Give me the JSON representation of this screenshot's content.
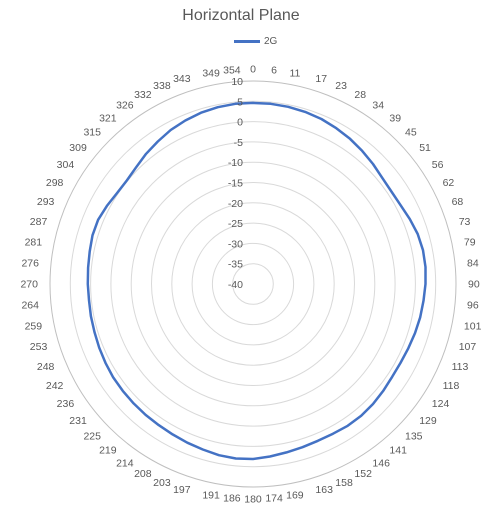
{
  "chart_data": {
    "type": "radar",
    "title": "Horizontal Plane",
    "legend_position": "top",
    "angle_labels": [
      "0",
      "6",
      "11",
      "17",
      "23",
      "28",
      "34",
      "39",
      "45",
      "51",
      "56",
      "62",
      "68",
      "73",
      "79",
      "84",
      "90",
      "96",
      "101",
      "107",
      "113",
      "118",
      "124",
      "129",
      "135",
      "141",
      "146",
      "152",
      "158",
      "163",
      "169",
      "174",
      "180",
      "186",
      "191",
      "197",
      "203",
      "208",
      "214",
      "219",
      "225",
      "231",
      "236",
      "242",
      "248",
      "253",
      "259",
      "264",
      "270",
      "276",
      "281",
      "287",
      "293",
      "298",
      "304",
      "309",
      "315",
      "321",
      "326",
      "332",
      "338",
      "343",
      "349",
      "354"
    ],
    "radial_ticks": [
      "10",
      "5",
      "0",
      "-5",
      "-10",
      "-15",
      "-20",
      "-25",
      "-30",
      "-35",
      "-40"
    ],
    "rlim": [
      -40,
      10
    ],
    "grid": true,
    "series": [
      {
        "name": "2G",
        "color": "#4472C4",
        "values": [
          4.6,
          4.6,
          4.5,
          4.3,
          4.0,
          3.5,
          3.0,
          2.4,
          1.8,
          1.2,
          1.0,
          1.2,
          1.8,
          2.4,
          2.7,
          2.7,
          2.5,
          2.2,
          2.0,
          1.7,
          1.4,
          1.2,
          1.2,
          1.5,
          1.8,
          2.0,
          2.0,
          1.8,
          1.8,
          2.0,
          2.3,
          2.7,
          3.1,
          3.2,
          3.0,
          2.6,
          2.3,
          2.0,
          1.8,
          1.7,
          1.6,
          1.5,
          1.4,
          1.2,
          1.0,
          0.8,
          0.7,
          0.6,
          0.7,
          0.8,
          1.0,
          1.3,
          1.3,
          0.8,
          0.3,
          0.2,
          0.7,
          1.5,
          2.2,
          3.0,
          3.6,
          4.1,
          4.4,
          4.6
        ]
      }
    ]
  }
}
